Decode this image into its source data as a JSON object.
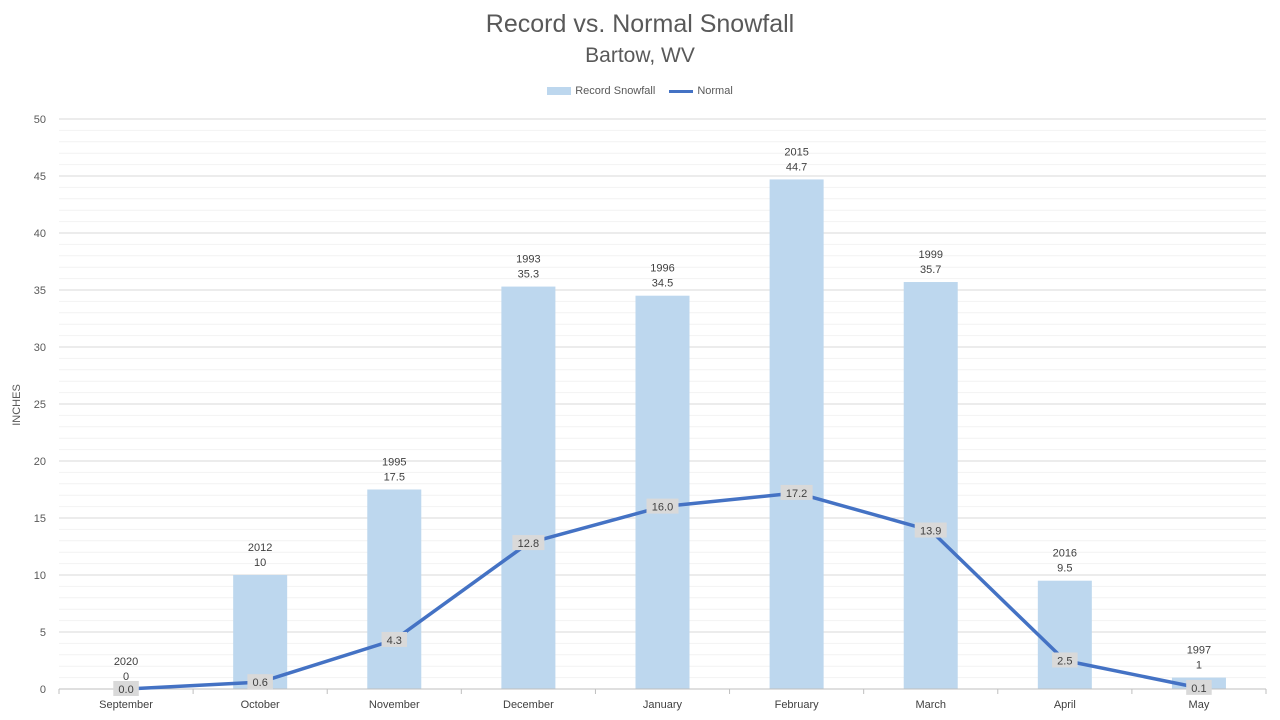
{
  "chart_data": {
    "type": "bar",
    "title": "Record vs. Normal Snowfall",
    "subtitle": "Bartow, WV",
    "ylabel": "INCHES",
    "xlabel": "",
    "ylim": [
      0,
      50
    ],
    "ytick_step": 5,
    "yticks": [
      "0",
      "5",
      "10",
      "15",
      "20",
      "25",
      "30",
      "35",
      "40",
      "45",
      "50"
    ],
    "grid": true,
    "legend_position": "top-center",
    "categories": [
      "September",
      "October",
      "November",
      "December",
      "January",
      "February",
      "March",
      "April",
      "May"
    ],
    "series": [
      {
        "name": "Record Snowfall",
        "kind": "bar",
        "color": "#bdd7ee",
        "values": [
          0,
          10,
          17.5,
          35.3,
          34.5,
          44.7,
          35.7,
          9.5,
          1
        ],
        "years": [
          "2020",
          "2012",
          "1995",
          "1993",
          "1996",
          "2015",
          "1999",
          "2016",
          "1997"
        ],
        "value_labels": [
          "0",
          "10",
          "17.5",
          "35.3",
          "34.5",
          "44.7",
          "35.7",
          "9.5",
          "1"
        ]
      },
      {
        "name": "Normal",
        "kind": "line",
        "color": "#4472c4",
        "values": [
          0.0,
          0.6,
          4.3,
          12.8,
          16.0,
          17.2,
          13.9,
          2.5,
          0.1
        ],
        "value_labels": [
          "0.0",
          "0.6",
          "4.3",
          "12.8",
          "16.0",
          "17.2",
          "13.9",
          "2.5",
          "0.1"
        ]
      }
    ]
  }
}
